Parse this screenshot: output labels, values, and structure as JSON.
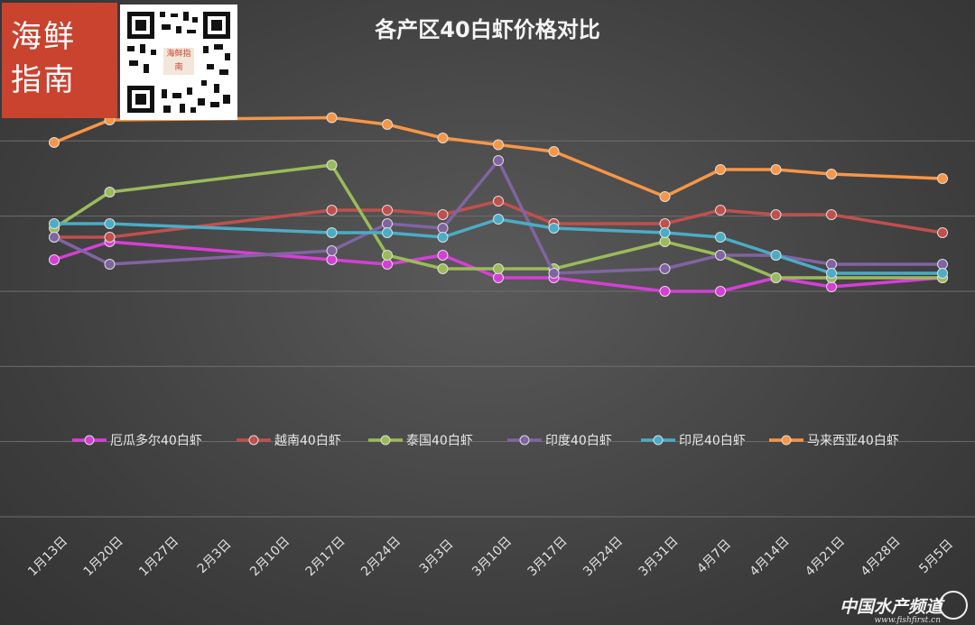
{
  "logo": {
    "line1": "海鲜",
    "line2": "指南",
    "qr_label": "海鲜指南"
  },
  "footer": {
    "brand": "中国水产频道",
    "url": "www.fishfirst.cn"
  },
  "chart_data": {
    "type": "line",
    "title": "各产区40白虾价格对比",
    "xlabel": "",
    "ylabel": "",
    "categories": [
      "1月13日",
      "1月20日",
      "1月27日",
      "2月3日",
      "2月10日",
      "2月17日",
      "2月24日",
      "3月3日",
      "3月10日",
      "3月17日",
      "3月24日",
      "3月31日",
      "4月7日",
      "4月14日",
      "4月21日",
      "4月28日",
      "5月5日"
    ],
    "ylim": [
      0,
      100
    ],
    "grid": true,
    "legend": "bottom",
    "series": [
      {
        "name": "厄瓜多尔40白虾",
        "color": "#d63fd6",
        "points": [
          [
            0,
            57
          ],
          [
            1,
            61
          ],
          [
            5,
            57
          ],
          [
            6,
            56
          ],
          [
            7,
            58
          ],
          [
            8,
            53
          ],
          [
            9,
            53
          ],
          [
            11,
            50
          ],
          [
            12,
            50
          ],
          [
            13,
            53
          ],
          [
            14,
            51
          ],
          [
            16,
            53
          ]
        ]
      },
      {
        "name": "越南40白虾",
        "color": "#c0504d",
        "points": [
          [
            0,
            62
          ],
          [
            1,
            62
          ],
          [
            5,
            68
          ],
          [
            6,
            68
          ],
          [
            7,
            67
          ],
          [
            8,
            70
          ],
          [
            9,
            65
          ],
          [
            11,
            65
          ],
          [
            12,
            68
          ],
          [
            13,
            67
          ],
          [
            14,
            67
          ],
          [
            16,
            63
          ]
        ]
      },
      {
        "name": "泰国40白虾",
        "color": "#9bbb59",
        "points": [
          [
            0,
            64
          ],
          [
            1,
            72
          ],
          [
            5,
            78
          ],
          [
            6,
            58
          ],
          [
            7,
            55
          ],
          [
            8,
            55
          ],
          [
            9,
            55
          ],
          [
            11,
            61
          ],
          [
            12,
            58
          ],
          [
            13,
            53
          ],
          [
            14,
            53
          ],
          [
            16,
            53
          ]
        ]
      },
      {
        "name": "印度40白虾",
        "color": "#8064a2",
        "points": [
          [
            0,
            62
          ],
          [
            1,
            56
          ],
          [
            5,
            59
          ],
          [
            6,
            65
          ],
          [
            7,
            64
          ],
          [
            8,
            79
          ],
          [
            9,
            54
          ],
          [
            11,
            55
          ],
          [
            12,
            58
          ],
          [
            13,
            58
          ],
          [
            14,
            56
          ],
          [
            16,
            56
          ]
        ]
      },
      {
        "name": "印尼40白虾",
        "color": "#4bacc6",
        "points": [
          [
            0,
            65
          ],
          [
            1,
            65
          ],
          [
            5,
            63
          ],
          [
            6,
            63
          ],
          [
            7,
            62
          ],
          [
            8,
            66
          ],
          [
            9,
            64
          ],
          [
            11,
            63
          ],
          [
            12,
            62
          ],
          [
            13,
            58
          ],
          [
            14,
            54
          ],
          [
            16,
            54
          ]
        ]
      },
      {
        "name": "马来西亚40白虾",
        "color": "#f79646",
        "points": [
          [
            0,
            83
          ],
          [
            1,
            88
          ],
          [
            5,
            88.5
          ],
          [
            6,
            87
          ],
          [
            7,
            84
          ],
          [
            8,
            82.5
          ],
          [
            9,
            81
          ],
          [
            11,
            71
          ],
          [
            12,
            77
          ],
          [
            13,
            77
          ],
          [
            14,
            76
          ],
          [
            16,
            75
          ]
        ]
      }
    ]
  }
}
